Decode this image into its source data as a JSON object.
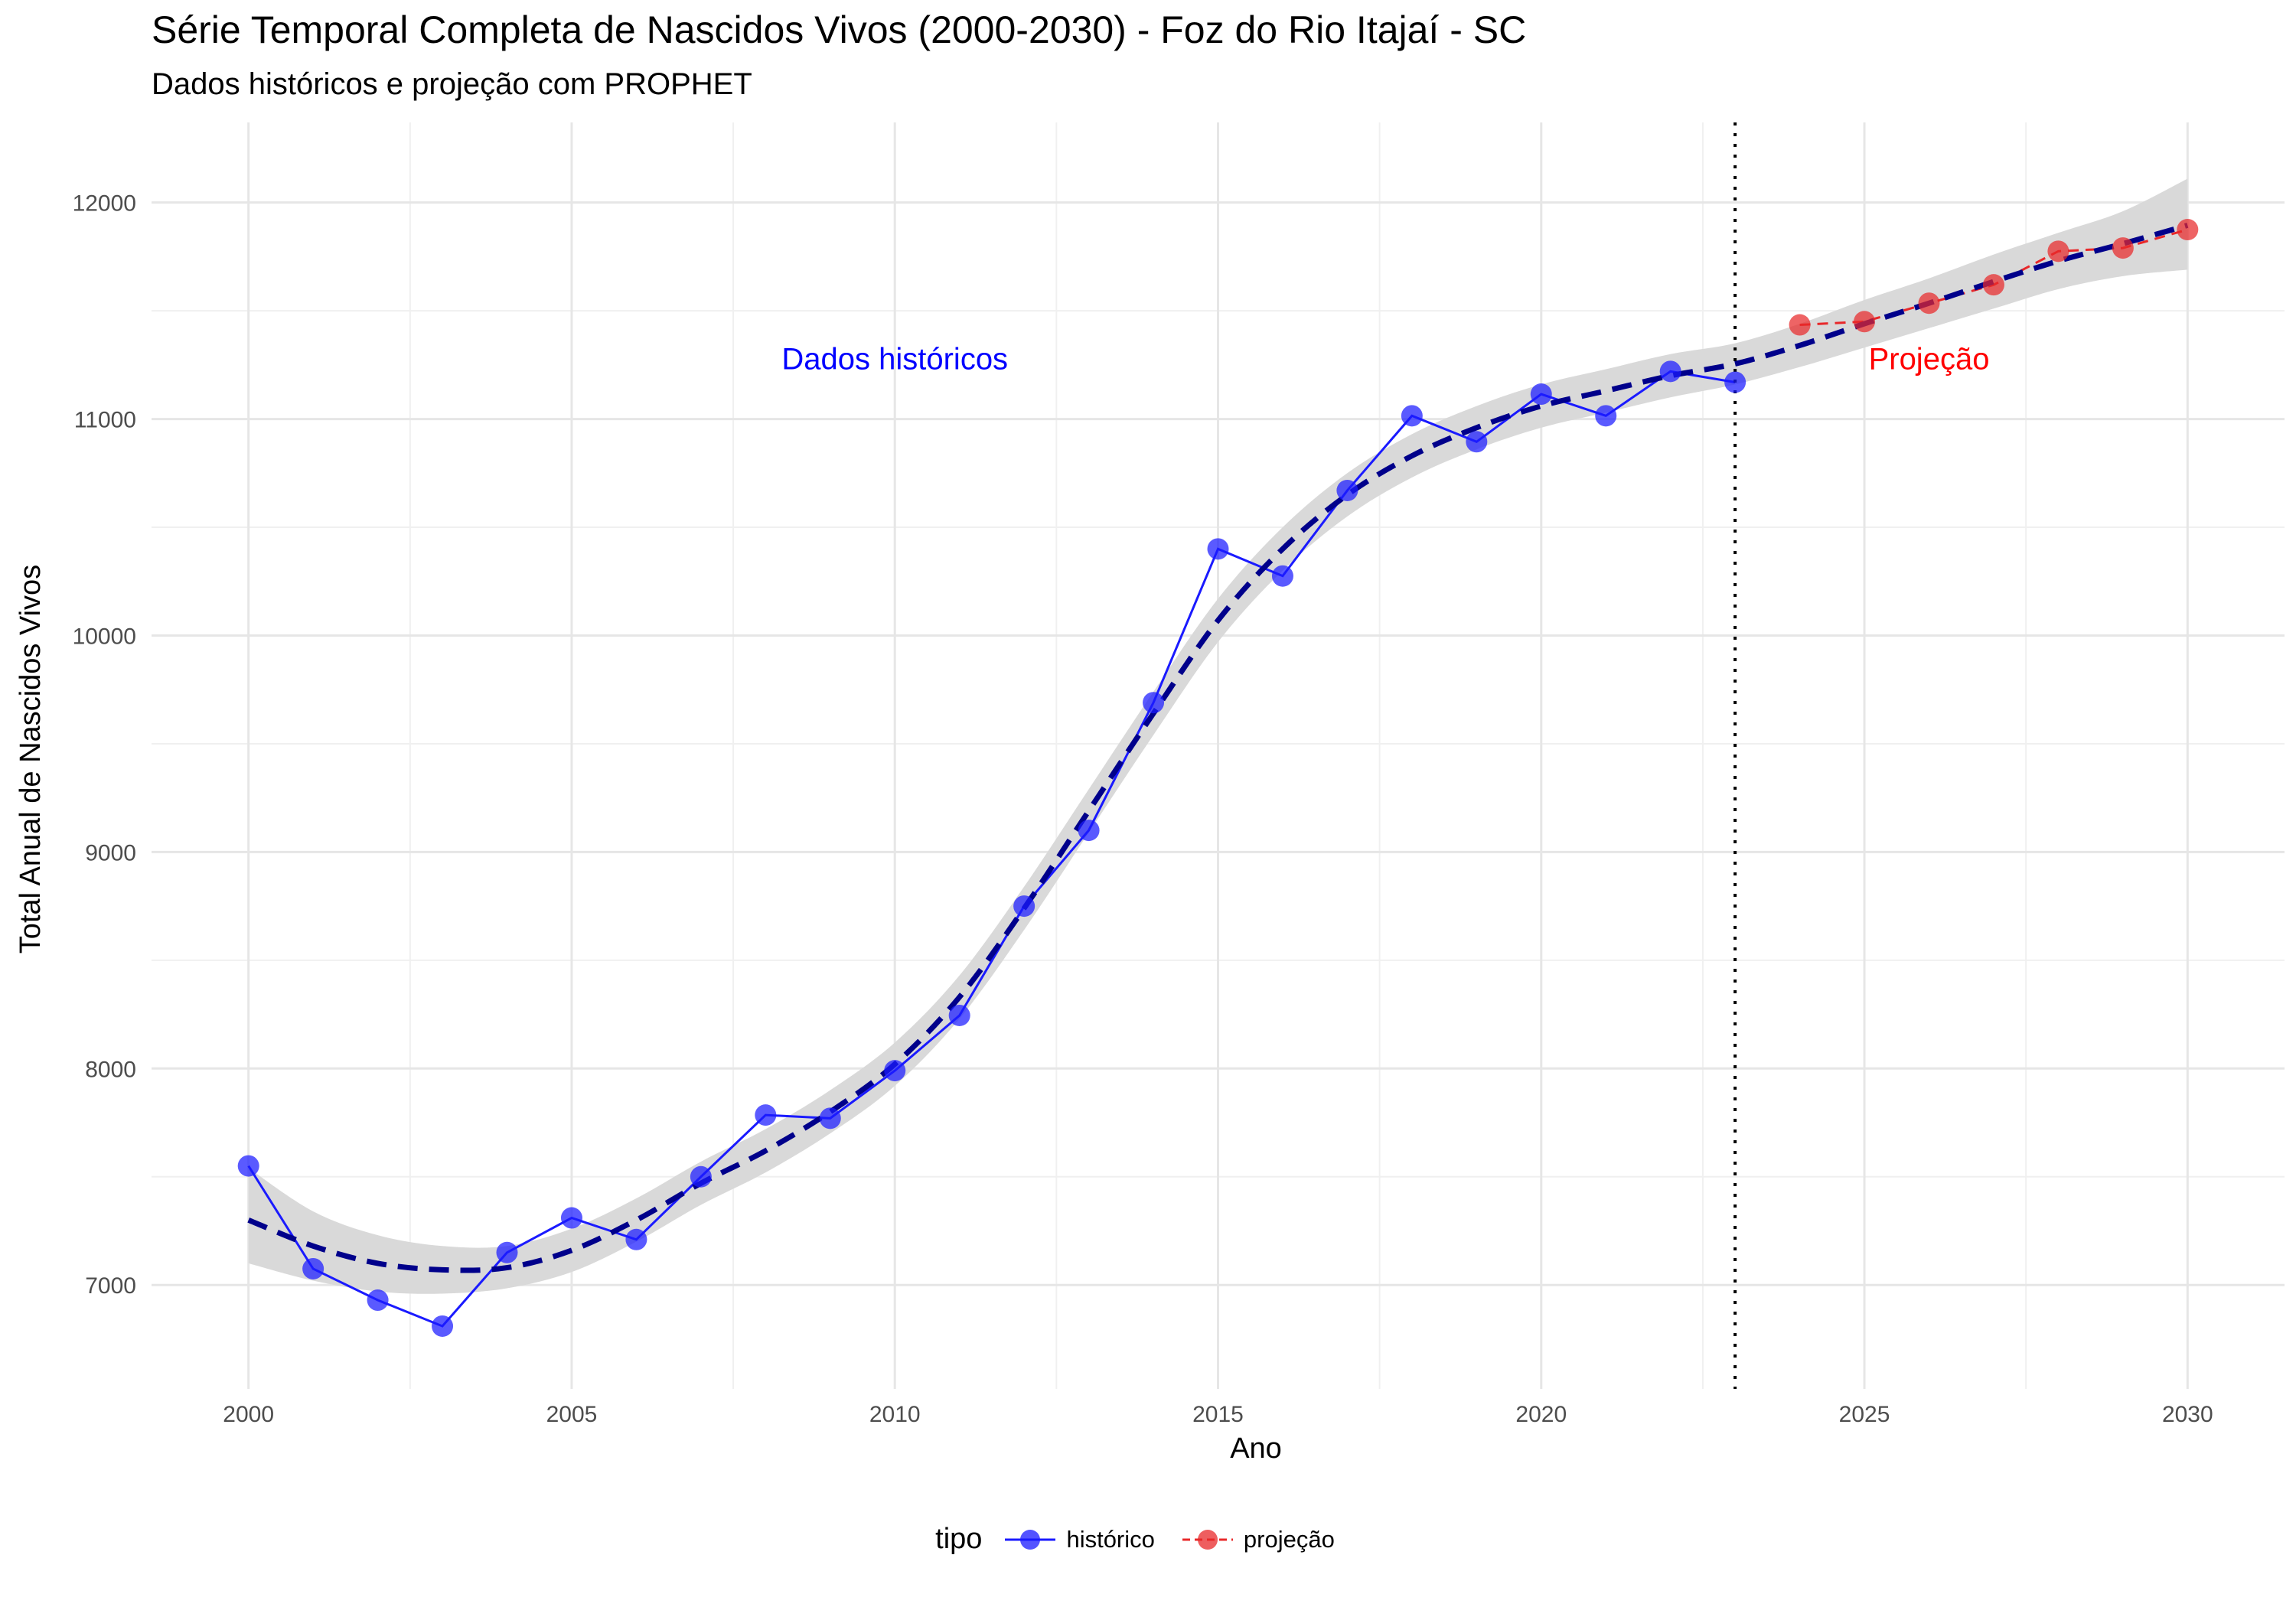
{
  "chart_data": {
    "type": "line",
    "title": "Série Temporal Completa de Nascidos Vivos (2000-2030) -  Foz do Rio Itajaí - SC",
    "subtitle": "Dados históricos e projeção com PROPHET",
    "xlabel": "Ano",
    "ylabel": "Total Anual de Nascidos Vivos",
    "xlim": [
      1998.5,
      2031.5
    ],
    "ylim": [
      6520,
      12370
    ],
    "x_ticks": [
      2000,
      2005,
      2010,
      2015,
      2020,
      2025,
      2030
    ],
    "y_ticks": [
      7000,
      8000,
      9000,
      10000,
      11000,
      12000
    ],
    "grid": true,
    "legend": {
      "position": "bottom",
      "title": "tipo",
      "entries": [
        "histórico",
        "projeção"
      ]
    },
    "series": [
      {
        "name": "histórico",
        "color": "#1a1aff",
        "style": "solid-line-with-points",
        "x": [
          2000,
          2001,
          2002,
          2003,
          2004,
          2005,
          2006,
          2007,
          2008,
          2009,
          2010,
          2011,
          2012,
          2013,
          2014,
          2015,
          2016,
          2017,
          2018,
          2019,
          2020,
          2021,
          2022,
          2023
        ],
        "y": [
          7550,
          7075,
          6930,
          6810,
          7150,
          7310,
          7210,
          7500,
          7785,
          7770,
          7990,
          8245,
          8750,
          9100,
          9690,
          10400,
          10275,
          10670,
          11015,
          10895,
          11115,
          11015,
          11220,
          11170
        ]
      },
      {
        "name": "projeção",
        "color": "#e8282a",
        "style": "dashed-line-with-points",
        "x": [
          2024,
          2025,
          2026,
          2027,
          2028,
          2029,
          2030
        ],
        "y": [
          11435,
          11450,
          11535,
          11620,
          11775,
          11790,
          11875
        ]
      },
      {
        "type": "smooth-trend",
        "color": "#00008b",
        "band_color": "#d9d9d9",
        "x": [
          2000,
          2001,
          2002,
          2003,
          2004,
          2005,
          2006,
          2007,
          2008,
          2009,
          2010,
          2011,
          2012,
          2013,
          2014,
          2015,
          2016,
          2017,
          2018,
          2019,
          2020,
          2021,
          2022,
          2023,
          2024,
          2025,
          2026,
          2027,
          2028,
          2029,
          2030
        ],
        "y": [
          7300,
          7180,
          7100,
          7070,
          7080,
          7160,
          7300,
          7470,
          7620,
          7800,
          8020,
          8330,
          8740,
          9190,
          9640,
          10070,
          10400,
          10650,
          10830,
          10960,
          11060,
          11130,
          11200,
          11255,
          11340,
          11440,
          11535,
          11635,
          11730,
          11810,
          11895
        ],
        "lower": [
          7100,
          7020,
          6970,
          6960,
          6985,
          7060,
          7200,
          7370,
          7520,
          7700,
          7920,
          8230,
          8640,
          9090,
          9540,
          9970,
          10300,
          10550,
          10730,
          10860,
          10960,
          11030,
          11100,
          11160,
          11240,
          11330,
          11420,
          11510,
          11600,
          11660,
          11690
        ],
        "upper": [
          7540,
          7340,
          7230,
          7180,
          7180,
          7260,
          7400,
          7570,
          7720,
          7900,
          8120,
          8430,
          8840,
          9290,
          9740,
          10170,
          10500,
          10750,
          10930,
          11060,
          11160,
          11230,
          11300,
          11350,
          11440,
          11550,
          11650,
          11760,
          11860,
          11960,
          12110
        ]
      }
    ],
    "vline": {
      "x": 2023,
      "style": "dotted"
    },
    "annotations": [
      {
        "text": "Dados históricos",
        "x": 2010,
        "y": 11280,
        "color": "#0000ff"
      },
      {
        "text": "Projeção",
        "x": 2026.0,
        "y": 11280,
        "color": "#ff0000"
      }
    ]
  }
}
